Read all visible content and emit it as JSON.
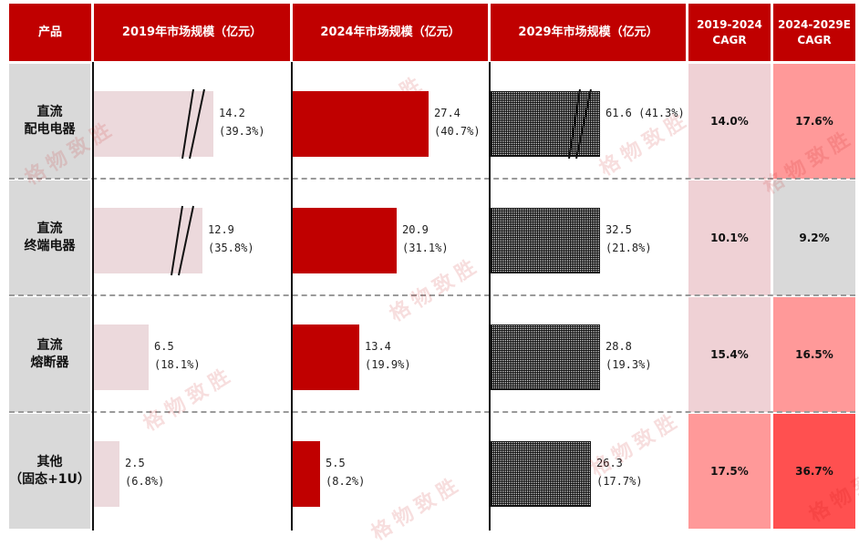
{
  "headers": {
    "product": "产品",
    "m2019": "2019年市场规模（亿元）",
    "m2024": "2024年市场规模（亿元）",
    "m2029": "2029年市场规模（亿元）",
    "cagr1": "2019-2024\nCAGR",
    "cagr2": "2024-2029E\nCAGR"
  },
  "watermark": "格物致胜",
  "colors": {
    "header": "#c00000",
    "bar_2019": "#ecd9dc",
    "bar_2024": "#c00000",
    "cagr_pale": "#efd1d5",
    "cagr_light": "#ff9999",
    "cagr_medium": "#ff7a7a",
    "cagr_strong": "#ff5050",
    "cagr_gray": "#d9d9d9",
    "product_bg": "#d9d9d9"
  },
  "chart_data": {
    "type": "table",
    "rows": [
      {
        "product": "直流\n配电电器",
        "v2019": 14.2,
        "s2019": "(39.3%)",
        "l2019": "14.2",
        "v2024": 27.4,
        "s2024": "(40.7%)",
        "l2024": "27.4",
        "v2029": 61.6,
        "s2029": "(41.3%)",
        "l2029": "61.6",
        "cagr1": "14.0%",
        "cagr2": "17.6%",
        "cagr1_color": "#efd1d5",
        "cagr2_color": "#ff9999",
        "break2019": true,
        "break2029": true
      },
      {
        "product": "直流\n终端电器",
        "v2019": 12.9,
        "s2019": "(35.8%)",
        "l2019": "12.9",
        "v2024": 20.9,
        "s2024": "(31.1%)",
        "l2024": "20.9",
        "v2029": 32.5,
        "s2029": "(21.8%)",
        "l2029": "32.5",
        "cagr1": "10.1%",
        "cagr2": "9.2%",
        "cagr1_color": "#efd1d5",
        "cagr2_color": "#d9d9d9",
        "break2019": true,
        "break2029": false
      },
      {
        "product": "直流\n熔断器",
        "v2019": 6.5,
        "s2019": "(18.1%)",
        "l2019": "6.5",
        "v2024": 13.4,
        "s2024": "(19.9%)",
        "l2024": "13.4",
        "v2029": 28.8,
        "s2029": "(19.3%)",
        "l2029": "28.8",
        "cagr1": "15.4%",
        "cagr2": "16.5%",
        "cagr1_color": "#efd1d5",
        "cagr2_color": "#ff9999",
        "break2019": false,
        "break2029": false
      },
      {
        "product": "其他\n（固态+1U）",
        "v2019": 2.5,
        "s2019": "(6.8%)",
        "l2019": "2.5",
        "v2024": 5.5,
        "s2024": "(8.2%)",
        "l2024": "5.5",
        "v2029": 26.3,
        "s2029": "(17.7%)",
        "l2029": "26.3",
        "cagr1": "17.5%",
        "cagr2": "36.7%",
        "cagr1_color": "#ff9999",
        "cagr2_color": "#ff5050",
        "break2019": false,
        "break2029": false
      }
    ]
  }
}
